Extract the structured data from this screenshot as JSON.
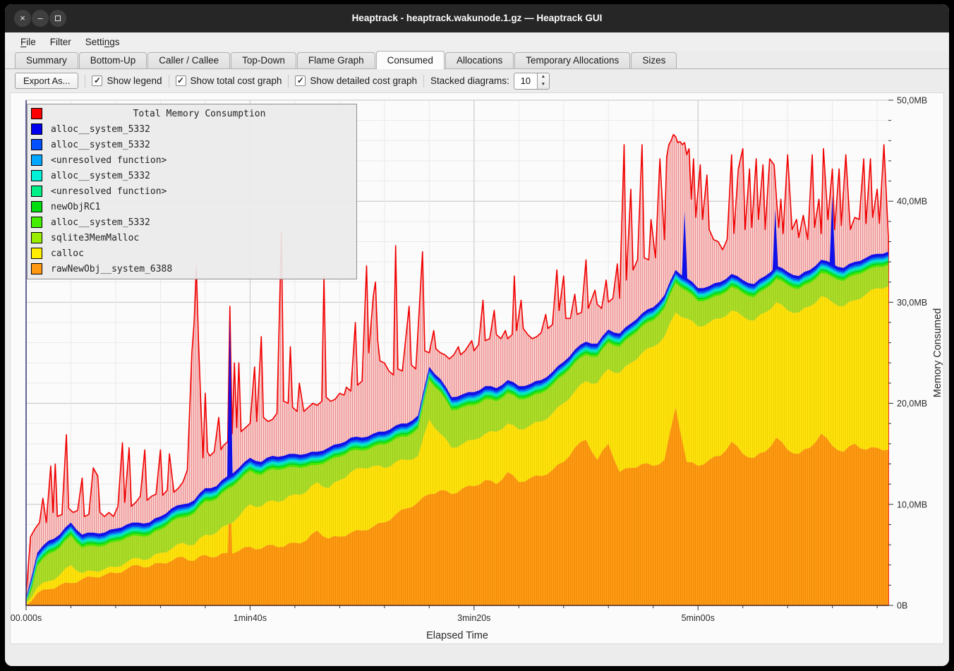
{
  "window": {
    "title": "Heaptrack - heaptrack.wakunode.1.gz — Heaptrack GUI",
    "buttons": [
      "close",
      "minimize",
      "maximize"
    ]
  },
  "menu": {
    "items": [
      {
        "label": "File",
        "accel_index": 0
      },
      {
        "label": "Filter",
        "accel_index": -1
      },
      {
        "label": "Settings",
        "accel_index": 5
      }
    ]
  },
  "tabs": {
    "labels": [
      "Summary",
      "Bottom-Up",
      "Caller / Callee",
      "Top-Down",
      "Flame Graph",
      "Consumed",
      "Allocations",
      "Temporary Allocations",
      "Sizes"
    ],
    "active": "Consumed"
  },
  "toolbar": {
    "export_label": "Export As...",
    "checkboxes": [
      {
        "label": "Show legend",
        "checked": true
      },
      {
        "label": "Show total cost graph",
        "checked": true
      },
      {
        "label": "Show detailed cost graph",
        "checked": true
      }
    ],
    "stacked_label": "Stacked diagrams:",
    "stacked_value": "10",
    "check_glyph": "✓"
  },
  "legend": {
    "title": "Total Memory Consumption",
    "title_color": "#ff0000",
    "items": [
      {
        "label": "alloc__system_5332",
        "color": "#0000ee"
      },
      {
        "label": "alloc__system_5332",
        "color": "#0050ff"
      },
      {
        "label": "<unresolved function>",
        "color": "#00a8ff"
      },
      {
        "label": "alloc__system_5332",
        "color": "#00f0d8"
      },
      {
        "label": "<unresolved function>",
        "color": "#00ee88"
      },
      {
        "label": "newObjRC1",
        "color": "#00dd11"
      },
      {
        "label": "alloc__system_5332",
        "color": "#44ee00"
      },
      {
        "label": "sqlite3MemMalloc",
        "color": "#99ee00"
      },
      {
        "label": "calloc",
        "color": "#ffee00"
      },
      {
        "label": "rawNewObj__system_6388",
        "color": "#ff9914"
      }
    ]
  },
  "chart_data": {
    "type": "area",
    "title": "Total Memory Consumption",
    "xlabel": "Elapsed Time",
    "ylabel": "Memory Consumed",
    "ylim_mb": [
      0,
      50
    ],
    "t_end_s": 385,
    "x_ticks": [
      {
        "t": 0,
        "label": "00.000s"
      },
      {
        "t": 100,
        "label": "1min40s"
      },
      {
        "t": 200,
        "label": "3min20s"
      },
      {
        "t": 300,
        "label": "5min00s"
      }
    ],
    "x_minor_step_s": 20,
    "y_ticks": [
      {
        "mb": 0,
        "label": "0B"
      },
      {
        "mb": 10,
        "label": "10,0MB"
      },
      {
        "mb": 20,
        "label": "20,0MB"
      },
      {
        "mb": 30,
        "label": "30,0MB"
      },
      {
        "mb": 40,
        "label": "40,0MB"
      },
      {
        "mb": 50,
        "label": "50,0MB"
      }
    ],
    "y_minor_step_mb": 2,
    "grid": {
      "minor_color": "#e9e9e9",
      "major_color": "#c4c4c4"
    },
    "axis_colors": {
      "left": "#3c3c7e",
      "bottom": "#2a2a2a",
      "tick": "#333333"
    },
    "sample_step_s": 5,
    "stacked_tops_mb": {
      "note": "cumulative stack tops sampled every 5s, 0..385s",
      "rawNewObj__system_6388": [
        0.0,
        1.2,
        1.6,
        2.0,
        2.2,
        2.6,
        2.8,
        3.0,
        3.2,
        3.6,
        4.0,
        3.8,
        4.2,
        4.4,
        4.8,
        4.4,
        5.0,
        4.8,
        5.2,
        5.4,
        5.8,
        5.6,
        6.0,
        5.8,
        6.2,
        6.4,
        7.4,
        6.6,
        6.8,
        7.2,
        7.4,
        7.8,
        8.2,
        9.0,
        9.6,
        10.2,
        11.0,
        11.4,
        11.0,
        11.6,
        11.8,
        12.4,
        12.0,
        13.2,
        12.2,
        12.6,
        12.8,
        13.4,
        14.2,
        15.6,
        16.4,
        14.4,
        16.0,
        13.2,
        13.6,
        14.0,
        13.8,
        14.4,
        19.6,
        14.2,
        13.8,
        14.4,
        14.8,
        16.2,
        15.0,
        14.6,
        15.2,
        16.6,
        15.4,
        15.0,
        15.6,
        17.0,
        15.8,
        15.2,
        16.0,
        15.4,
        15.6,
        15.4
      ],
      "calloc": [
        0.2,
        1.8,
        2.4,
        3.0,
        4.0,
        3.2,
        3.4,
        3.6,
        3.8,
        4.3,
        4.7,
        4.6,
        5.2,
        5.6,
        6.2,
        6.0,
        7.0,
        7.2,
        8.0,
        8.8,
        10.0,
        9.8,
        10.4,
        10.4,
        11.0,
        11.2,
        12.2,
        11.6,
        12.4,
        13.2,
        13.6,
        13.8,
        13.6,
        14.2,
        14.4,
        14.8,
        18.4,
        17.0,
        15.6,
        16.0,
        16.4,
        17.0,
        17.2,
        18.0,
        17.4,
        17.8,
        18.2,
        19.0,
        20.0,
        21.2,
        22.2,
        22.0,
        23.4,
        23.0,
        24.0,
        25.0,
        25.6,
        26.6,
        29.0,
        28.4,
        27.6,
        28.0,
        28.4,
        29.2,
        28.6,
        28.2,
        29.0,
        30.0,
        29.2,
        29.0,
        29.6,
        30.6,
        30.0,
        29.6,
        30.2,
        30.8,
        31.4,
        31.6
      ],
      "stack_top_all": [
        0.8,
        5.2,
        6.4,
        7.0,
        8.2,
        7.0,
        7.2,
        7.2,
        7.6,
        8.0,
        8.2,
        8.2,
        8.8,
        9.6,
        10.0,
        10.4,
        11.6,
        11.8,
        12.8,
        13.6,
        14.6,
        14.2,
        14.8,
        14.8,
        15.0,
        15.0,
        15.2,
        15.6,
        16.0,
        16.6,
        16.6,
        17.0,
        17.2,
        17.8,
        18.0,
        18.8,
        23.6,
        22.4,
        20.6,
        20.9,
        21.1,
        21.7,
        21.5,
        22.3,
        21.7,
        21.9,
        22.3,
        23.1,
        24.1,
        25.3,
        26.1,
        25.9,
        27.3,
        26.9,
        27.9,
        28.9,
        29.5,
        30.7,
        33.2,
        32.4,
        31.4,
        31.6,
        32.0,
        32.8,
        32.2,
        31.8,
        32.6,
        33.6,
        33.0,
        32.6,
        33.2,
        34.2,
        33.8,
        33.4,
        34.0,
        34.4,
        34.8,
        35.0
      ]
    },
    "thin_layers": {
      "note": "band between (stack_top_all - gap) and stack_top_all, split bottom-to-top",
      "gap_mb": 1.3,
      "sqlite_band_rule": "sqlite3MemMalloc top = stack_top_all - gap_mb (clamped to calloc top)",
      "order": [
        {
          "name": "alloc__system_5332",
          "color": "#44e800",
          "frac": 0.16
        },
        {
          "name": "newObjRC1",
          "color": "#00d818",
          "frac": 0.12
        },
        {
          "name": "<unresolved function>",
          "color": "#00e87f",
          "frac": 0.12
        },
        {
          "name": "alloc__system_5332",
          "color": "#00e8c8",
          "frac": 0.13
        },
        {
          "name": "<unresolved function>",
          "color": "#00a6f2",
          "frac": 0.12
        },
        {
          "name": "alloc__system_5332",
          "color": "#0054f0",
          "frac": 0.12
        },
        {
          "name": "alloc__system_5332",
          "color": "#1010e8",
          "frac": 0.23
        }
      ]
    },
    "blue_spikes_t_mb": [
      [
        91,
        28.6
      ],
      [
        294,
        39.0
      ],
      [
        334.5,
        39.2
      ],
      [
        360,
        40.6
      ]
    ],
    "orange_spikes_t_mb": [
      [
        91,
        12.5
      ]
    ],
    "layer_fills": {
      "orange": {
        "bg": "#ff9d17",
        "stripe": "#ef8702"
      },
      "yellow": {
        "bg": "#ffe50d",
        "stripe": "#eecf00"
      },
      "sqlite": {
        "bg": "#addf2d",
        "stripe": "#9ccb15"
      },
      "red": {
        "bg": "#f7cfcf",
        "stripe": "#ee8585",
        "stroke": "#f10000"
      }
    },
    "total_red_mb": [
      [
        0,
        1.0
      ],
      [
        2,
        6.8
      ],
      [
        4,
        7.6
      ],
      [
        6,
        8.2
      ],
      [
        7.5,
        10.6
      ],
      [
        9,
        8.2
      ],
      [
        11,
        13.8
      ],
      [
        12,
        9.2
      ],
      [
        13,
        14.0
      ],
      [
        14,
        8.8
      ],
      [
        16,
        9.0
      ],
      [
        18,
        16.9
      ],
      [
        19,
        9.6
      ],
      [
        21,
        9.2
      ],
      [
        23,
        9.4
      ],
      [
        25,
        12.6
      ],
      [
        26,
        8.8
      ],
      [
        28,
        9.0
      ],
      [
        30,
        13.6
      ],
      [
        32,
        12.8
      ],
      [
        33,
        9.2
      ],
      [
        35,
        8.8
      ],
      [
        37,
        9.2
      ],
      [
        39,
        8.8
      ],
      [
        41,
        9.8
      ],
      [
        43,
        16.1
      ],
      [
        44,
        10.2
      ],
      [
        46,
        15.6
      ],
      [
        47,
        9.8
      ],
      [
        49,
        10.2
      ],
      [
        51,
        10.8
      ],
      [
        53,
        15.4
      ],
      [
        54,
        10.4
      ],
      [
        56,
        10.8
      ],
      [
        58,
        11.0
      ],
      [
        60,
        15.4
      ],
      [
        61,
        10.9
      ],
      [
        63,
        11.4
      ],
      [
        64,
        15.0
      ],
      [
        66,
        11.2
      ],
      [
        68,
        11.6
      ],
      [
        70,
        12.2
      ],
      [
        72,
        13.4
      ],
      [
        74,
        25.0
      ],
      [
        75,
        28.0
      ],
      [
        76,
        33.6
      ],
      [
        77,
        26.0
      ],
      [
        78,
        20.0
      ],
      [
        79,
        14.6
      ],
      [
        80,
        21.0
      ],
      [
        81,
        15.2
      ],
      [
        82,
        14.8
      ],
      [
        84,
        15.2
      ],
      [
        86,
        18.6
      ],
      [
        87,
        15.4
      ],
      [
        88,
        15.8
      ],
      [
        90,
        16.2
      ],
      [
        91,
        29.6
      ],
      [
        92,
        17.0
      ],
      [
        93,
        24.0
      ],
      [
        94,
        17.6
      ],
      [
        95,
        24.0
      ],
      [
        96,
        17.2
      ],
      [
        98,
        17.6
      ],
      [
        100,
        18.0
      ],
      [
        102,
        23.6
      ],
      [
        103,
        18.2
      ],
      [
        105,
        26.6
      ],
      [
        106,
        18.6
      ],
      [
        108,
        18.2
      ],
      [
        110,
        18.4
      ],
      [
        112,
        19.0
      ],
      [
        114,
        37.0
      ],
      [
        115,
        20.2
      ],
      [
        117,
        20.0
      ],
      [
        118,
        25.6
      ],
      [
        119,
        19.6
      ],
      [
        121,
        19.2
      ],
      [
        122,
        22.0
      ],
      [
        124,
        19.2
      ],
      [
        126,
        19.6
      ],
      [
        128,
        20.0
      ],
      [
        130,
        19.8
      ],
      [
        132,
        20.2
      ],
      [
        133,
        32.6
      ],
      [
        134,
        20.6
      ],
      [
        136,
        20.2
      ],
      [
        138,
        20.4
      ],
      [
        140,
        21.0
      ],
      [
        142,
        20.8
      ],
      [
        143,
        21.6
      ],
      [
        145,
        21.2
      ],
      [
        147,
        28.0
      ],
      [
        148,
        21.8
      ],
      [
        150,
        22.2
      ],
      [
        152,
        33.6
      ],
      [
        153,
        25.0
      ],
      [
        155,
        30.6
      ],
      [
        156,
        32.0
      ],
      [
        157,
        26.2
      ],
      [
        158,
        24.2
      ],
      [
        160,
        24.0
      ],
      [
        162,
        23.2
      ],
      [
        164,
        22.8
      ],
      [
        165,
        35.6
      ],
      [
        166,
        23.4
      ],
      [
        168,
        23.2
      ],
      [
        171,
        29.6
      ],
      [
        172,
        23.8
      ],
      [
        174,
        23.4
      ],
      [
        177,
        35.0
      ],
      [
        178,
        25.2
      ],
      [
        180,
        25.0
      ],
      [
        182,
        27.2
      ],
      [
        183,
        25.4
      ],
      [
        185,
        25.0
      ],
      [
        187,
        24.8
      ],
      [
        189,
        24.4
      ],
      [
        191,
        24.8
      ],
      [
        193,
        25.6
      ],
      [
        194,
        24.8
      ],
      [
        196,
        25.2
      ],
      [
        199,
        26.2
      ],
      [
        200,
        25.2
      ],
      [
        202,
        25.8
      ],
      [
        204,
        30.2
      ],
      [
        205,
        26.2
      ],
      [
        207,
        26.4
      ],
      [
        209,
        29.2
      ],
      [
        210,
        26.8
      ],
      [
        212,
        26.4
      ],
      [
        214,
        27.2
      ],
      [
        215,
        26.4
      ],
      [
        217,
        26.8
      ],
      [
        218,
        32.6
      ],
      [
        219,
        27.2
      ],
      [
        221,
        30.2
      ],
      [
        222,
        27.4
      ],
      [
        224,
        26.8
      ],
      [
        226,
        26.4
      ],
      [
        228,
        26.6
      ],
      [
        230,
        27.0
      ],
      [
        232,
        28.8
      ],
      [
        233,
        27.4
      ],
      [
        235,
        27.8
      ],
      [
        237,
        33.2
      ],
      [
        238,
        29.2
      ],
      [
        240,
        32.6
      ],
      [
        241,
        28.4
      ],
      [
        243,
        28.4
      ],
      [
        245,
        30.8
      ],
      [
        246,
        28.8
      ],
      [
        248,
        29.0
      ],
      [
        250,
        34.2
      ],
      [
        251,
        29.4
      ],
      [
        254,
        31.2
      ],
      [
        255,
        29.8
      ],
      [
        257,
        29.4
      ],
      [
        259,
        32.2
      ],
      [
        260,
        30.0
      ],
      [
        262,
        30.4
      ],
      [
        264,
        33.8
      ],
      [
        265,
        30.4
      ],
      [
        267,
        45.6
      ],
      [
        268,
        32.2
      ],
      [
        270,
        41.2
      ],
      [
        271,
        33.2
      ],
      [
        273,
        34.2
      ],
      [
        275,
        45.6
      ],
      [
        276,
        34.4
      ],
      [
        278,
        34.2
      ],
      [
        279,
        38.2
      ],
      [
        281,
        34.4
      ],
      [
        283,
        44.2
      ],
      [
        285,
        36.2
      ],
      [
        286,
        44.4
      ],
      [
        287,
        45.6
      ],
      [
        288,
        46.0
      ],
      [
        289,
        46.6
      ],
      [
        290,
        46.4
      ],
      [
        291,
        45.8
      ],
      [
        292,
        45.9
      ],
      [
        293,
        45.6
      ],
      [
        294,
        45.8
      ],
      [
        295,
        44.6
      ],
      [
        296,
        45.2
      ],
      [
        297,
        40.2
      ],
      [
        298,
        44.2
      ],
      [
        299,
        38.4
      ],
      [
        301,
        43.6
      ],
      [
        302,
        38.2
      ],
      [
        304,
        42.6
      ],
      [
        305,
        37.2
      ],
      [
        307,
        36.2
      ],
      [
        309,
        36.0
      ],
      [
        311,
        35.2
      ],
      [
        313,
        36.2
      ],
      [
        315,
        44.6
      ],
      [
        316,
        36.8
      ],
      [
        318,
        43.2
      ],
      [
        320,
        45.2
      ],
      [
        321,
        37.2
      ],
      [
        323,
        43.2
      ],
      [
        324,
        37.4
      ],
      [
        326,
        44.2
      ],
      [
        327,
        38.2
      ],
      [
        329,
        43.6
      ],
      [
        330,
        37.2
      ],
      [
        332,
        44.2
      ],
      [
        334,
        43.6
      ],
      [
        335,
        40.4
      ],
      [
        336,
        37.4
      ],
      [
        337,
        40.2
      ],
      [
        338,
        36.8
      ],
      [
        340,
        44.6
      ],
      [
        342,
        37.2
      ],
      [
        344,
        38.2
      ],
      [
        345,
        36.4
      ],
      [
        347,
        38.6
      ],
      [
        349,
        36.2
      ],
      [
        351,
        44.6
      ],
      [
        352,
        37.4
      ],
      [
        354,
        40.2
      ],
      [
        355,
        36.8
      ],
      [
        356,
        45.2
      ],
      [
        358,
        38.2
      ],
      [
        360,
        43.2
      ],
      [
        361,
        37.2
      ],
      [
        363,
        43.2
      ],
      [
        364,
        37.6
      ],
      [
        366,
        44.6
      ],
      [
        368,
        37.2
      ],
      [
        370,
        38.4
      ],
      [
        372,
        38.2
      ],
      [
        374,
        44.2
      ],
      [
        375,
        37.8
      ],
      [
        377,
        44.2
      ],
      [
        378,
        38.4
      ],
      [
        380,
        41.2
      ],
      [
        381,
        37.8
      ],
      [
        383,
        45.6
      ],
      [
        385,
        36.4
      ]
    ]
  }
}
